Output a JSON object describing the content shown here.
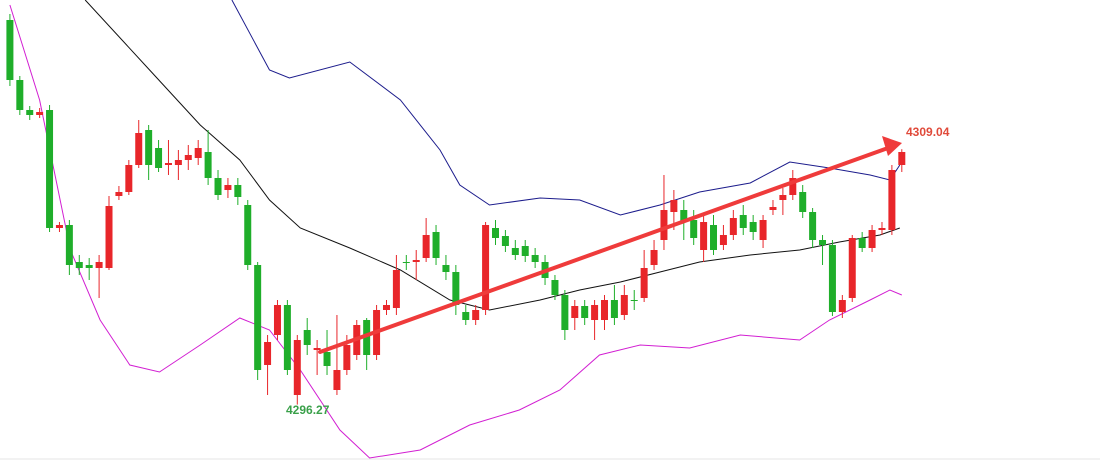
{
  "chart_data": {
    "type": "candlestick",
    "ylim": [
      4293.2,
      4316.5
    ],
    "xlim": [
      -1.0,
      110.0
    ],
    "up_color": "#e8262a",
    "down_color": "#1fae2a",
    "candles": [
      [
        4315.5,
        4315.8,
        4312.2,
        4312.5
      ],
      [
        4312.5,
        4312.7,
        4310.75,
        4311.0
      ],
      [
        4311.0,
        4311.2,
        4310.5,
        4310.75
      ],
      [
        4310.75,
        4311.1,
        4310.6,
        4310.9
      ],
      [
        4311.0,
        4311.25,
        4304.9,
        4305.1
      ],
      [
        4305.1,
        4305.4,
        4304.9,
        4305.25
      ],
      [
        4305.25,
        4305.5,
        4302.75,
        4303.25
      ],
      [
        4303.4,
        4303.75,
        4302.75,
        4303.1
      ],
      [
        4303.25,
        4303.6,
        4302.5,
        4303.1
      ],
      [
        4303.1,
        4303.75,
        4301.6,
        4303.4
      ],
      [
        4303.1,
        4306.7,
        4303.0,
        4306.2
      ],
      [
        4306.7,
        4307.2,
        4306.5,
        4306.9
      ],
      [
        4306.9,
        4308.5,
        4306.75,
        4308.25
      ],
      [
        4308.25,
        4310.5,
        4308.1,
        4309.85
      ],
      [
        4310.0,
        4310.25,
        4307.5,
        4308.25
      ],
      [
        4309.1,
        4309.5,
        4307.9,
        4308.1
      ],
      [
        4308.25,
        4309.5,
        4307.75,
        4308.35
      ],
      [
        4308.25,
        4309.0,
        4307.5,
        4308.5
      ],
      [
        4308.5,
        4309.25,
        4308.0,
        4308.75
      ],
      [
        4308.6,
        4309.5,
        4308.25,
        4309.1
      ],
      [
        4308.9,
        4310.0,
        4307.25,
        4307.6
      ],
      [
        4307.6,
        4308.0,
        4306.5,
        4306.75
      ],
      [
        4307.0,
        4307.6,
        4306.6,
        4307.25
      ],
      [
        4307.25,
        4307.6,
        4306.25,
        4306.65
      ],
      [
        4306.25,
        4306.5,
        4303.0,
        4303.25
      ],
      [
        4303.25,
        4303.4,
        4297.5,
        4298.0
      ],
      [
        4298.25,
        4299.75,
        4296.75,
        4299.4
      ],
      [
        4299.75,
        4301.5,
        4299.5,
        4301.25
      ],
      [
        4301.25,
        4301.5,
        4297.75,
        4298.0
      ],
      [
        4296.75,
        4299.75,
        4296.27,
        4299.5
      ],
      [
        4300.0,
        4300.6,
        4298.75,
        4299.25
      ],
      [
        4299.0,
        4299.5,
        4297.75,
        4299.1
      ],
      [
        4298.9,
        4300.0,
        4297.75,
        4298.2
      ],
      [
        4297.0,
        4300.75,
        4296.75,
        4298.0
      ],
      [
        4298.0,
        4299.75,
        4297.75,
        4299.25
      ],
      [
        4298.75,
        4300.5,
        4298.5,
        4300.25
      ],
      [
        4300.5,
        4300.6,
        4298.0,
        4298.75
      ],
      [
        4298.75,
        4301.25,
        4298.5,
        4301.0
      ],
      [
        4301.0,
        4301.5,
        4300.75,
        4301.25
      ],
      [
        4301.1,
        4303.75,
        4300.75,
        4303.0
      ],
      [
        4303.4,
        4303.75,
        4303.0,
        4303.35
      ],
      [
        4303.4,
        4304.0,
        4302.5,
        4303.5
      ],
      [
        4303.6,
        4305.6,
        4303.4,
        4304.75
      ],
      [
        4304.9,
        4305.25,
        4303.25,
        4303.6
      ],
      [
        4303.25,
        4303.75,
        4302.5,
        4302.9
      ],
      [
        4302.9,
        4303.25,
        4300.75,
        4301.25
      ],
      [
        4300.9,
        4301.25,
        4300.25,
        4300.5
      ],
      [
        4300.5,
        4301.25,
        4300.25,
        4301.0
      ],
      [
        4301.0,
        4305.4,
        4300.75,
        4305.25
      ],
      [
        4305.1,
        4305.5,
        4304.25,
        4304.6
      ],
      [
        4304.7,
        4305.0,
        4303.9,
        4304.2
      ],
      [
        4304.1,
        4304.5,
        4303.5,
        4303.75
      ],
      [
        4304.2,
        4304.5,
        4303.4,
        4303.7
      ],
      [
        4303.75,
        4304.1,
        4303.1,
        4303.4
      ],
      [
        4303.4,
        4303.75,
        4302.25,
        4302.6
      ],
      [
        4302.5,
        4302.75,
        4301.5,
        4301.75
      ],
      [
        4301.75,
        4302.0,
        4299.5,
        4300.0
      ],
      [
        4300.6,
        4301.5,
        4300.0,
        4301.2
      ],
      [
        4301.2,
        4301.5,
        4300.25,
        4300.6
      ],
      [
        4300.5,
        4301.5,
        4299.5,
        4301.25
      ],
      [
        4300.5,
        4301.75,
        4300.0,
        4301.5
      ],
      [
        4301.5,
        4302.25,
        4300.25,
        4300.6
      ],
      [
        4300.75,
        4302.25,
        4300.5,
        4301.75
      ],
      [
        4301.5,
        4302.0,
        4301.0,
        4301.45
      ],
      [
        4301.6,
        4304.0,
        4301.4,
        4303.1
      ],
      [
        4303.25,
        4304.5,
        4303.0,
        4304.0
      ],
      [
        4304.5,
        4307.75,
        4304.0,
        4306.0
      ],
      [
        4305.9,
        4307.0,
        4305.0,
        4306.5
      ],
      [
        4306.0,
        4306.5,
        4304.5,
        4305.4
      ],
      [
        4305.5,
        4306.0,
        4304.25,
        4304.6
      ],
      [
        4304.0,
        4305.75,
        4303.4,
        4305.4
      ],
      [
        4305.25,
        4305.75,
        4303.75,
        4304.0
      ],
      [
        4304.25,
        4305.25,
        4304.0,
        4304.75
      ],
      [
        4304.75,
        4306.0,
        4304.5,
        4305.6
      ],
      [
        4305.75,
        4306.25,
        4304.75,
        4305.1
      ],
      [
        4305.4,
        4305.75,
        4304.5,
        4304.9
      ],
      [
        4304.5,
        4305.75,
        4304.1,
        4305.5
      ],
      [
        4306.0,
        4306.5,
        4305.75,
        4306.15
      ],
      [
        4306.5,
        4307.1,
        4305.75,
        4306.75
      ],
      [
        4306.75,
        4308.0,
        4306.5,
        4307.6
      ],
      [
        4306.9,
        4307.25,
        4305.6,
        4305.9
      ],
      [
        4305.9,
        4306.1,
        4304.1,
        4304.5
      ],
      [
        4304.5,
        4304.75,
        4303.25,
        4304.25
      ],
      [
        4304.25,
        4304.5,
        4300.7,
        4300.9
      ],
      [
        4300.9,
        4301.75,
        4300.6,
        4301.5
      ],
      [
        4301.6,
        4304.75,
        4301.4,
        4304.6
      ],
      [
        4304.6,
        4304.9,
        4303.9,
        4304.1
      ],
      [
        4304.1,
        4305.25,
        4303.9,
        4305.0
      ],
      [
        4305.0,
        4305.4,
        4304.75,
        4305.1
      ],
      [
        4305.0,
        4308.25,
        4304.75,
        4308.0
      ],
      [
        4308.25,
        4309.04,
        4307.9,
        4308.9
      ]
    ],
    "series": [
      {
        "color": "#1c1c8c",
        "x": [
          22.4,
          26.2,
          28.2,
          34.3,
          39.4,
          43.4,
          45.4,
          48.4,
          53.5,
          57.5,
          61.6,
          65.6,
          69.6,
          74.7,
          78.7,
          82.7,
          86.8,
          88.8,
          89.8
        ],
        "values": [
          4316.5,
          4313.0,
          4312.6,
          4313.4,
          4311.5,
          4309.0,
          4307.25,
          4306.25,
          4306.6,
          4306.5,
          4305.75,
          4306.25,
          4306.9,
          4307.35,
          4308.4,
          4308.1,
          4307.75,
          4307.5,
          4308.25
        ]
      },
      {
        "color": "#111111",
        "x": [
          7.6,
          14.1,
          19.2,
          23.2,
          26.2,
          29.3,
          34.3,
          39.4,
          44.4,
          48.4,
          53.5,
          57.5,
          61.6,
          65.6,
          69.6,
          74.7,
          79.7,
          83.7,
          87.8,
          89.8
        ],
        "values": [
          4316.5,
          4313.0,
          4310.25,
          4308.5,
          4306.5,
          4305.1,
          4304.1,
          4303.0,
          4301.5,
          4301.0,
          4301.5,
          4302.0,
          4302.4,
          4302.9,
          4303.4,
          4303.75,
          4304.0,
          4304.4,
          4304.75,
          4305.1
        ]
      },
      {
        "color": "#d21fd2",
        "x": [
          0,
          3.0,
          6.1,
          9.1,
          12.1,
          15.1,
          19.2,
          23.2,
          26.2,
          29.3,
          33.3,
          36.3,
          41.4,
          46.4,
          51.4,
          55.5,
          59.5,
          63.6,
          68.6,
          73.7,
          79.7,
          82.7,
          86.8,
          88.8,
          90.0
        ],
        "values": [
          4316.25,
          4311.5,
          4304.0,
          4300.5,
          4298.25,
          4297.9,
          4299.25,
          4300.6,
          4300.0,
          4298.0,
          4295.0,
          4293.6,
          4294.0,
          4295.25,
          4296.0,
          4297.0,
          4298.75,
          4299.25,
          4299.1,
          4299.75,
          4299.5,
          4300.5,
          4301.5,
          4302.0,
          4301.75
        ]
      }
    ]
  }
}
